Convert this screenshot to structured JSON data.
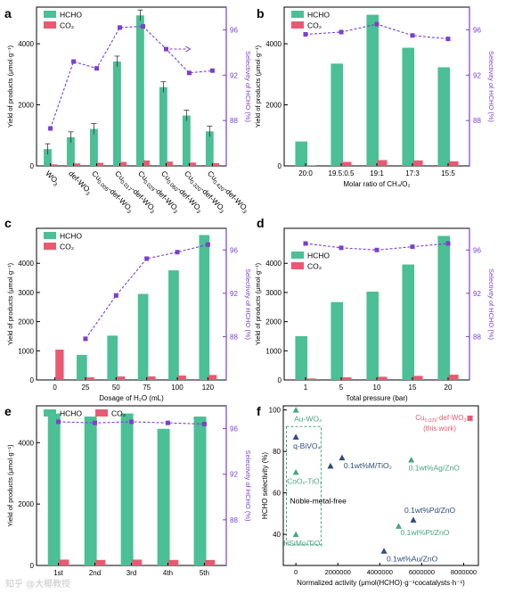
{
  "colors": {
    "hcho": "#4bbf96",
    "co2": "#e85a72",
    "sel": "#7b3fd0",
    "noble": "#4aa583",
    "nonnoble": "#2c4b7b",
    "work": "#e85a72"
  },
  "watermark": "知乎 @大椰教授",
  "chart_data": [
    {
      "panel": "a",
      "type": "bar",
      "categories": [
        "WO3",
        "def-WO3",
        "Cu0.005-def-WO3",
        "Cu0.017-def-WO3",
        "Cu0.029-def-WO3",
        "Cu0.060-def-WO3",
        "Cu0.320-def-WO3",
        "Cu0.420-def-WO3"
      ],
      "cat_base": [
        "WO",
        "def-WO",
        "Cu",
        "Cu",
        "Cu",
        "Cu",
        "Cu",
        "Cu"
      ],
      "cat_sub": [
        "3",
        "3",
        "0.005",
        "0.017",
        "0.029",
        "0.060",
        "0.320",
        "0.420"
      ],
      "cat_tail": [
        "",
        "",
        "-def-WO",
        "-def-WO",
        "-def-WO",
        "-def-WO",
        "-def-WO",
        "-def-WO"
      ],
      "cat_sub2": [
        "",
        "",
        "3",
        "3",
        "3",
        "3",
        "3",
        "3"
      ],
      "series": [
        {
          "name": "HCHO",
          "values": [
            550,
            940,
            1210,
            3420,
            4930,
            2580,
            1650,
            1130
          ]
        },
        {
          "name": "CO2",
          "values": [
            50,
            80,
            100,
            130,
            180,
            140,
            110,
            90
          ]
        }
      ],
      "selectivity": [
        87.3,
        93.2,
        92.6,
        96.2,
        96.3,
        94.3,
        92.2,
        92.4
      ],
      "ylabel": "Yield of products (μmol·g⁻¹)",
      "y2label": "Selectivity of HCHO (%)",
      "ylim": [
        0,
        5200
      ],
      "yticks": [
        0,
        2000,
        4000
      ],
      "y2lim": [
        84,
        98
      ],
      "y2ticks": [
        88,
        92,
        96
      ],
      "xlabel": "",
      "legend": [
        "HCHO",
        "CO₂"
      ]
    },
    {
      "panel": "b",
      "type": "bar",
      "categories": [
        "20:0",
        "19.5:0.5",
        "19:1",
        "17:3",
        "15:5"
      ],
      "series": [
        {
          "name": "HCHO",
          "values": [
            800,
            3350,
            4950,
            3870,
            3230
          ]
        },
        {
          "name": "CO2",
          "values": [
            20,
            130,
            190,
            180,
            150
          ]
        }
      ],
      "selectivity": [
        95.6,
        95.8,
        96.5,
        95.5,
        95.2
      ],
      "xlabel": "Molar ratio of CH₄/O₂",
      "ylabel": "Yield of products (μmol·g⁻¹)",
      "y2label": "Selectivity of HCHO (%)",
      "ylim": [
        0,
        5200
      ],
      "yticks": [
        0,
        2000,
        4000
      ],
      "y2lim": [
        84,
        98
      ],
      "y2ticks": [
        88,
        92,
        96
      ],
      "legend": [
        "HCHO",
        "CO₂"
      ]
    },
    {
      "panel": "c",
      "type": "bar",
      "categories": [
        "0",
        "25",
        "50",
        "75",
        "100",
        "120"
      ],
      "series": [
        {
          "name": "HCHO",
          "values": [
            0,
            860,
            1520,
            2950,
            3760,
            4970
          ]
        },
        {
          "name": "CO2",
          "values": [
            1040,
            90,
            120,
            120,
            150,
            170
          ]
        }
      ],
      "selectivity": [
        null,
        87.8,
        91.8,
        95.2,
        95.8,
        96.5
      ],
      "xlabel": "Dosage of H₂O (mL)",
      "ylabel": "Yield of products (μmol·g⁻¹)",
      "y2label": "Selectivity of HCHO (%)",
      "ylim": [
        0,
        5200
      ],
      "yticks": [
        0,
        1000,
        2000,
        3000,
        4000
      ],
      "y2lim": [
        84,
        98
      ],
      "y2ticks": [
        88,
        92,
        96
      ],
      "legend": [
        "HCHO",
        "CO₂"
      ]
    },
    {
      "panel": "d",
      "type": "bar",
      "categories": [
        "1",
        "5",
        "10",
        "15",
        "20"
      ],
      "series": [
        {
          "name": "HCHO",
          "values": [
            1500,
            2670,
            3030,
            3960,
            4940
          ]
        },
        {
          "name": "CO2",
          "values": [
            50,
            90,
            110,
            140,
            180
          ]
        }
      ],
      "selectivity": [
        96.6,
        96.2,
        96.0,
        96.3,
        96.6
      ],
      "xlabel": "Total pressure (bar)",
      "ylabel": "Yield of products (μmol·g⁻¹)",
      "y2label": "Selectivity of HCHO (%)",
      "ylim": [
        0,
        5200
      ],
      "yticks": [
        0,
        1000,
        2000,
        3000,
        4000
      ],
      "y2lim": [
        84,
        98
      ],
      "y2ticks": [
        88,
        92,
        96
      ],
      "legend": [
        "HCHO",
        "CO₂"
      ]
    },
    {
      "panel": "e",
      "type": "bar",
      "categories": [
        "1st",
        "2nd",
        "3rd",
        "4th",
        "5th"
      ],
      "series": [
        {
          "name": "HCHO",
          "values": [
            4950,
            4850,
            4950,
            4450,
            4850
          ]
        },
        {
          "name": "CO2",
          "values": [
            190,
            180,
            190,
            180,
            180
          ]
        }
      ],
      "selectivity": [
        96.6,
        96.5,
        96.6,
        96.5,
        96.4
      ],
      "xlabel": "",
      "ylabel": "Yield of products (μmol·g⁻¹)",
      "y2label": "Selectivity of HCHO (%)",
      "ylim": [
        0,
        5200
      ],
      "yticks": [
        0,
        2000,
        4000
      ],
      "y2lim": [
        84,
        98
      ],
      "y2ticks": [
        88,
        92,
        96
      ],
      "legend": [
        "HCHO",
        "CO₂"
      ]
    },
    {
      "panel": "f",
      "type": "scatter",
      "xlabel": "Normalized activity (μmol(HCHO)·g⁻¹cocatalysts·h⁻¹)",
      "ylabel": "HCHO selectivity (%)",
      "xlim": [
        -600000,
        8700000
      ],
      "xticks": [
        0,
        2000000,
        4000000,
        6000000,
        8000000
      ],
      "ylim": [
        25,
        102
      ],
      "yticks": [
        40,
        60,
        80,
        100
      ],
      "box_label": "Noble-metal-free",
      "points": [
        {
          "x": 0,
          "y": 100,
          "label": "Au-WO₃",
          "group": "noble"
        },
        {
          "x": 0,
          "y": 87,
          "label": "q-BiVO₄",
          "group": "nonnoble"
        },
        {
          "x": 0,
          "y": 70,
          "label": "CoOₓ-TiO₂",
          "group": "noble"
        },
        {
          "x": 0,
          "y": 40,
          "label": "HSiMo/TiO₂",
          "group": "noble"
        },
        {
          "x": 1650000,
          "y": 73,
          "label": "",
          "group": "nonnoble"
        },
        {
          "x": 2200000,
          "y": 77,
          "label": "0.1wt%M/TiO₂",
          "group": "nonnoble"
        },
        {
          "x": 5500000,
          "y": 76,
          "label": "0.1wt%Ag/ZnO",
          "group": "noble"
        },
        {
          "x": 5600000,
          "y": 47,
          "label": "0.1wt%Pd/ZnO",
          "group": "nonnoble"
        },
        {
          "x": 4900000,
          "y": 44,
          "label": "0.1wt%Pt/ZnO",
          "group": "noble"
        },
        {
          "x": 4200000,
          "y": 32,
          "label": "0.1wt%Au/ZnO",
          "group": "nonnoble"
        },
        {
          "x": 8300000,
          "y": 96,
          "label": "Cu0.029-def-WO3",
          "group": "work"
        }
      ],
      "work_label": "(this work)"
    }
  ]
}
